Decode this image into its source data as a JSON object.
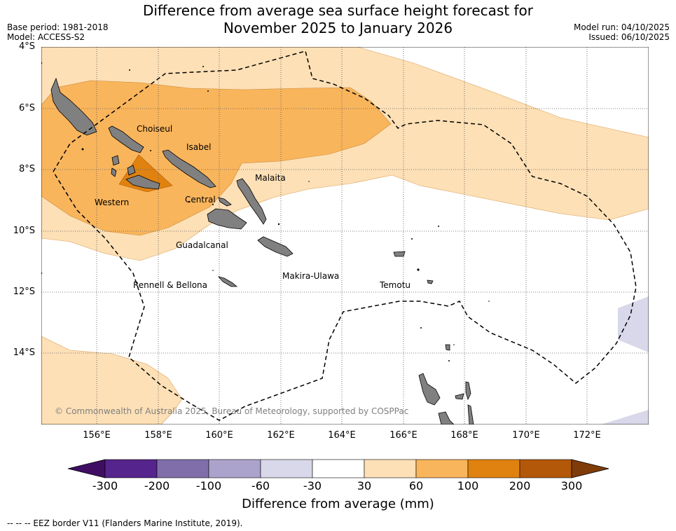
{
  "title_line1": "Difference from average sea surface height forecast for",
  "title_line2": "November 2025 to January 2026",
  "base_period": "Base period: 1981-2018",
  "model": "Model: ACCESS-S2",
  "model_run": "Model run: 04/10/2025",
  "issued": "Issued: 06/10/2025",
  "lat_labels": [
    "4°S",
    "6°S",
    "8°S",
    "10°S",
    "12°S",
    "14°S"
  ],
  "lon_labels": [
    "156°E",
    "158°E",
    "160°E",
    "162°E",
    "164°E",
    "166°E",
    "168°E",
    "170°E",
    "172°E"
  ],
  "places": {
    "choiseul": "Choiseul",
    "isabel": "Isabel",
    "malaita": "Malaita",
    "western": "Western",
    "central": "Central",
    "guadalcanal": "Guadalcanal",
    "makira": "Makira-Ulawa",
    "temotu": "Temotu",
    "rennell": "Rennell & Bellona"
  },
  "copyright": "© Commonwealth of Australia 2025, Bureau of Meteorology, supported by COSPPac",
  "colorbar": {
    "labels": [
      "-300",
      "-200",
      "-100",
      "-60",
      "-30",
      "30",
      "60",
      "100",
      "200",
      "300"
    ],
    "colors": [
      "#3f0e62",
      "#55248c",
      "#7f6ea9",
      "#aba3cc",
      "#d8d8ea",
      "#ffffff",
      "#fde0b6",
      "#f9b55c",
      "#e0820f",
      "#b35808",
      "#7f3b08"
    ],
    "title": "Difference from average (mm)"
  },
  "legend": "--  --  -- EEZ border V11 (Flanders Marine Institute, 2019)."
}
